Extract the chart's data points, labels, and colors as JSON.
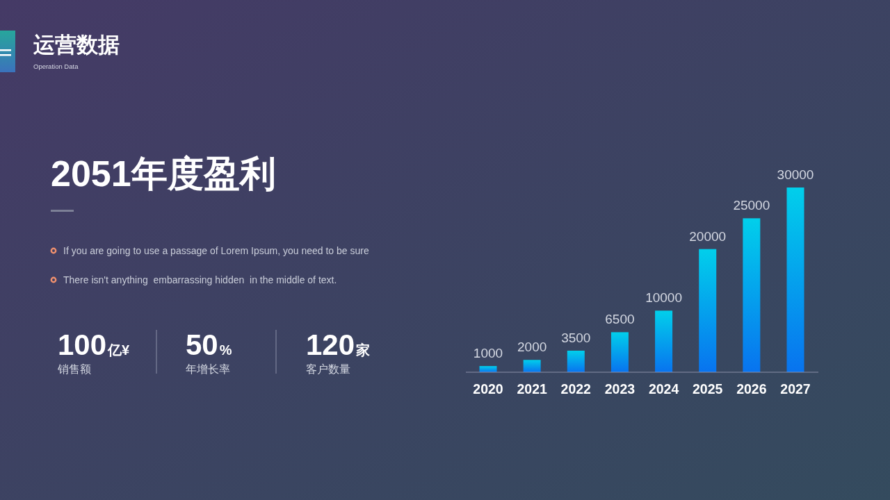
{
  "chart_data": {
    "type": "bar",
    "title": "运营数据",
    "subtitle": "Operation Data",
    "annotations": [
      "2051年度盈利",
      "If you are going to use a passage of Lorem Ipsum, you need to be sure",
      "There isn't anything  embarrassing hidden  in the middle of text.",
      "100亿¥",
      "销售额",
      "50%",
      "年增长率",
      "120家",
      "客户数量"
    ],
    "categories": [
      "2020",
      "2021",
      "2022",
      "2023",
      "2024",
      "2025",
      "2026",
      "2027"
    ],
    "values": [
      1000,
      2000,
      3500,
      6500,
      10000,
      20000,
      25000,
      30000
    ],
    "color": "#03a6ec",
    "data_labels": true
  }
}
